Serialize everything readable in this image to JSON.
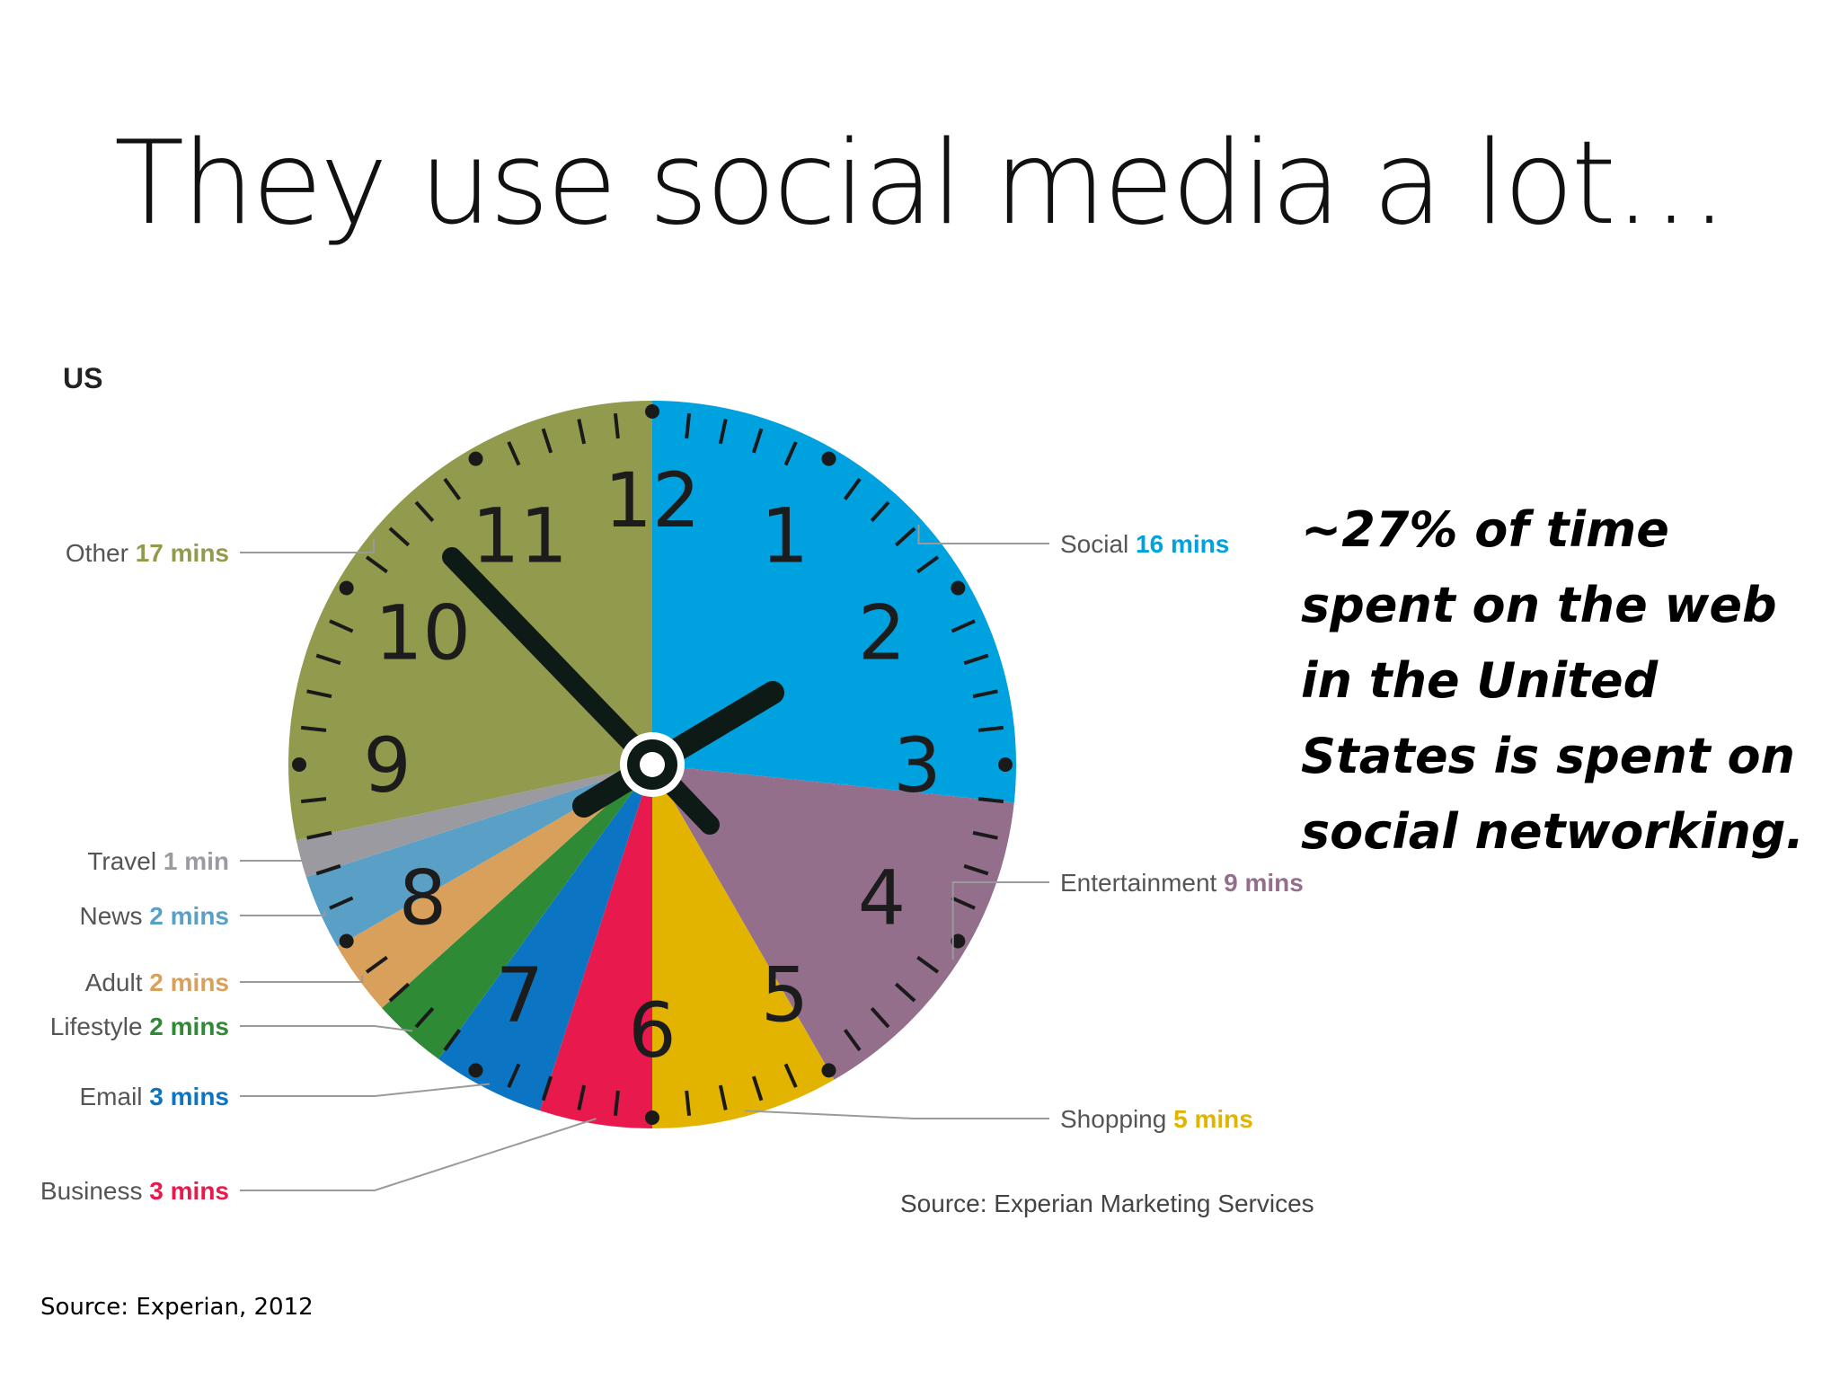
{
  "slide": {
    "title": "They use social media a lot…",
    "callout": "~27% of time spent on the web in the United States is spent on social networking.",
    "source": "Source: Experian, 2012"
  },
  "chart_data": {
    "type": "pie",
    "title": "US",
    "unit": "mins",
    "source": "Source: Experian Marketing Services",
    "slices": [
      {
        "label": "Social",
        "value": 16,
        "value_label": "16 mins",
        "color": "#00a1df"
      },
      {
        "label": "Entertainment",
        "value": 9,
        "value_label": "9 mins",
        "color": "#936f8b"
      },
      {
        "label": "Shopping",
        "value": 5,
        "value_label": "5 mins",
        "color": "#e2b400"
      },
      {
        "label": "Business",
        "value": 3,
        "value_label": "3 mins",
        "color": "#e8194c"
      },
      {
        "label": "Email",
        "value": 3,
        "value_label": "3 mins",
        "color": "#0b75c4"
      },
      {
        "label": "Lifestyle",
        "value": 2,
        "value_label": "2 mins",
        "color": "#2f8a36"
      },
      {
        "label": "Adult",
        "value": 2,
        "value_label": "2 mins",
        "color": "#d9a05c"
      },
      {
        "label": "News",
        "value": 2,
        "value_label": "2 mins",
        "color": "#5a9fc6"
      },
      {
        "label": "Travel",
        "value": 1,
        "value_label": "1 min",
        "color": "#9a9aa0"
      },
      {
        "label": "Other",
        "value": 17,
        "value_label": "17 mins",
        "color": "#929a4e"
      }
    ],
    "clock_numerals": [
      "12",
      "1",
      "2",
      "3",
      "4",
      "5",
      "6",
      "7",
      "8",
      "9",
      "10",
      "11"
    ]
  }
}
